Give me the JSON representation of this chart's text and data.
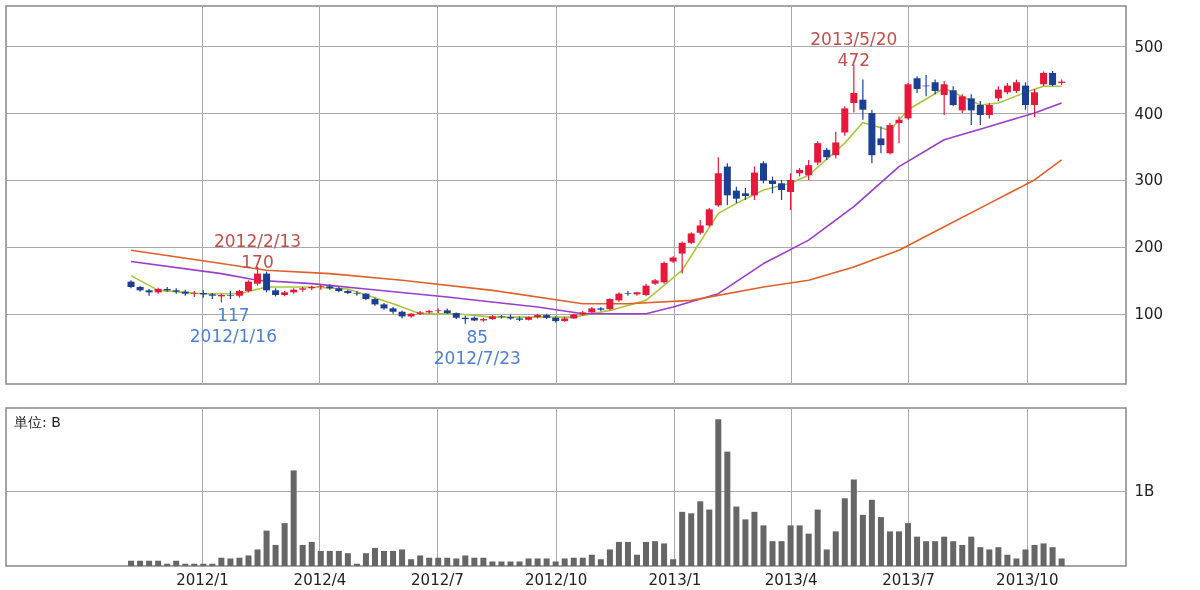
{
  "chart_data": [
    {
      "type": "candlestick",
      "xlim": [
        "2011-08-06",
        "2013-12-13"
      ],
      "ylim": [
        -5,
        560
      ],
      "yticks": [
        100,
        200,
        300,
        400,
        500
      ],
      "xticks": [
        {
          "value": "2012-01-01",
          "label": null
        },
        {
          "value": "2012-04-01",
          "label": null
        },
        {
          "value": "2012-07-01",
          "label": null
        },
        {
          "value": "2012-10-01",
          "label": null
        },
        {
          "value": "2013-01-01",
          "label": null
        },
        {
          "value": "2013-04-01",
          "label": null
        },
        {
          "value": "2013-07-01",
          "label": null
        },
        {
          "value": "2013-10-01",
          "label": null
        }
      ],
      "grid": true,
      "tick_labels": "y",
      "x": [
        "2011-11-07",
        "2011-11-14",
        "2011-11-21",
        "2011-11-28",
        "2011-12-05",
        "2011-12-12",
        "2011-12-19",
        "2011-12-26",
        "2012-01-02",
        "2012-01-09",
        "2012-01-16",
        "2012-01-23",
        "2012-01-30",
        "2012-02-06",
        "2012-02-13",
        "2012-02-20",
        "2012-02-27",
        "2012-03-05",
        "2012-03-12",
        "2012-03-19",
        "2012-03-26",
        "2012-04-02",
        "2012-04-09",
        "2012-04-16",
        "2012-04-23",
        "2012-04-30",
        "2012-05-07",
        "2012-05-14",
        "2012-05-21",
        "2012-05-28",
        "2012-06-04",
        "2012-06-11",
        "2012-06-18",
        "2012-06-25",
        "2012-07-02",
        "2012-07-09",
        "2012-07-16",
        "2012-07-23",
        "2012-07-30",
        "2012-08-06",
        "2012-08-13",
        "2012-08-20",
        "2012-08-27",
        "2012-09-03",
        "2012-09-10",
        "2012-09-17",
        "2012-09-24",
        "2012-10-01",
        "2012-10-08",
        "2012-10-15",
        "2012-10-22",
        "2012-10-29",
        "2012-11-05",
        "2012-11-12",
        "2012-11-19",
        "2012-11-26",
        "2012-12-03",
        "2012-12-10",
        "2012-12-17",
        "2012-12-24",
        "2012-12-31",
        "2013-01-07",
        "2013-01-14",
        "2013-01-21",
        "2013-01-28",
        "2013-02-04",
        "2013-02-11",
        "2013-02-18",
        "2013-02-25",
        "2013-03-04",
        "2013-03-11",
        "2013-03-18",
        "2013-03-25",
        "2013-04-01",
        "2013-04-08",
        "2013-04-15",
        "2013-04-22",
        "2013-04-29",
        "2013-05-06",
        "2013-05-13",
        "2013-05-20",
        "2013-05-27",
        "2013-06-03",
        "2013-06-10",
        "2013-06-17",
        "2013-06-24",
        "2013-07-01",
        "2013-07-08",
        "2013-07-15",
        "2013-07-22",
        "2013-07-29",
        "2013-08-05",
        "2013-08-12",
        "2013-08-19",
        "2013-08-26",
        "2013-09-02",
        "2013-09-09",
        "2013-09-16",
        "2013-09-23",
        "2013-09-30",
        "2013-10-07",
        "2013-10-14",
        "2013-10-21",
        "2013-10-28"
      ],
      "ohlc": [
        [
          148,
          150,
          138,
          140
        ],
        [
          140,
          142,
          133,
          135
        ],
        [
          135,
          137,
          127,
          132
        ],
        [
          132,
          139,
          130,
          137
        ],
        [
          137,
          140,
          133,
          135
        ],
        [
          135,
          138,
          130,
          133
        ],
        [
          133,
          136,
          127,
          130
        ],
        [
          130,
          134,
          125,
          131
        ],
        [
          131,
          135,
          124,
          129
        ],
        [
          129,
          131,
          122,
          127
        ],
        [
          126,
          130,
          117,
          128
        ],
        [
          128,
          134,
          122,
          127
        ],
        [
          127,
          136,
          124,
          134
        ],
        [
          134,
          150,
          132,
          148
        ],
        [
          145,
          170,
          142,
          160
        ],
        [
          160,
          163,
          132,
          135
        ],
        [
          135,
          138,
          126,
          128
        ],
        [
          128,
          134,
          126,
          132
        ],
        [
          132,
          138,
          130,
          136
        ],
        [
          136,
          140,
          133,
          138
        ],
        [
          138,
          142,
          135,
          140
        ],
        [
          140,
          143,
          136,
          141
        ],
        [
          141,
          144,
          136,
          138
        ],
        [
          138,
          140,
          132,
          134
        ],
        [
          134,
          136,
          129,
          131
        ],
        [
          131,
          134,
          127,
          130
        ],
        [
          130,
          131,
          120,
          122
        ],
        [
          122,
          124,
          112,
          114
        ],
        [
          114,
          116,
          106,
          108
        ],
        [
          108,
          110,
          100,
          103
        ],
        [
          103,
          105,
          93,
          96
        ],
        [
          96,
          101,
          94,
          100
        ],
        [
          100,
          104,
          98,
          102
        ],
        [
          102,
          106,
          100,
          104
        ],
        [
          104,
          108,
          101,
          105
        ],
        [
          105,
          108,
          100,
          101
        ],
        [
          101,
          102,
          92,
          94
        ],
        [
          94,
          97,
          85,
          92
        ],
        [
          94,
          96,
          89,
          90
        ],
        [
          90,
          94,
          88,
          92
        ],
        [
          92,
          98,
          91,
          96
        ],
        [
          96,
          98,
          93,
          95
        ],
        [
          95,
          99,
          91,
          93
        ],
        [
          93,
          96,
          89,
          91
        ],
        [
          91,
          96,
          90,
          95
        ],
        [
          95,
          100,
          93,
          98
        ],
        [
          98,
          100,
          92,
          94
        ],
        [
          94,
          96,
          87,
          89
        ],
        [
          89,
          95,
          88,
          93
        ],
        [
          93,
          100,
          92,
          99
        ],
        [
          99,
          104,
          97,
          102
        ],
        [
          102,
          110,
          101,
          108
        ],
        [
          108,
          110,
          104,
          106
        ],
        [
          107,
          123,
          105,
          122
        ],
        [
          120,
          132,
          118,
          130
        ],
        [
          131,
          134,
          127,
          130
        ],
        [
          129,
          133,
          127,
          132
        ],
        [
          128,
          145,
          126,
          142
        ],
        [
          145,
          152,
          143,
          150
        ],
        [
          147,
          178,
          145,
          176
        ],
        [
          178,
          186,
          176,
          184
        ],
        [
          190,
          208,
          160,
          206
        ],
        [
          206,
          222,
          204,
          220
        ],
        [
          221,
          240,
          218,
          232
        ],
        [
          232,
          258,
          230,
          256
        ],
        [
          262,
          334,
          260,
          310
        ],
        [
          320,
          325,
          262,
          277
        ],
        [
          284,
          290,
          265,
          272
        ],
        [
          280,
          288,
          270,
          276
        ],
        [
          277,
          320,
          270,
          311
        ],
        [
          325,
          328,
          295,
          299
        ],
        [
          299,
          305,
          280,
          294
        ],
        [
          295,
          300,
          270,
          285
        ],
        [
          282,
          310,
          255,
          300
        ],
        [
          310,
          318,
          305,
          315
        ],
        [
          307,
          330,
          300,
          322
        ],
        [
          326,
          358,
          322,
          355
        ],
        [
          345,
          348,
          330,
          334
        ],
        [
          337,
          372,
          332,
          356
        ],
        [
          371,
          410,
          366,
          407
        ],
        [
          415,
          472,
          401,
          430
        ],
        [
          420,
          450,
          390,
          405
        ],
        [
          400,
          405,
          325,
          337
        ],
        [
          362,
          380,
          340,
          352
        ],
        [
          340,
          385,
          338,
          382
        ],
        [
          385,
          395,
          355,
          390
        ],
        [
          392,
          445,
          390,
          443
        ],
        [
          452,
          455,
          430,
          436
        ],
        [
          441,
          457,
          425,
          440
        ],
        [
          446,
          450,
          428,
          433
        ],
        [
          427,
          448,
          397,
          443
        ],
        [
          434,
          440,
          410,
          412
        ],
        [
          404,
          428,
          400,
          425
        ],
        [
          422,
          428,
          382,
          404
        ],
        [
          412,
          418,
          382,
          397
        ],
        [
          397,
          415,
          392,
          412
        ],
        [
          422,
          440,
          418,
          435
        ],
        [
          431,
          445,
          428,
          441
        ],
        [
          433,
          450,
          430,
          446
        ],
        [
          441,
          446,
          405,
          412
        ],
        [
          412,
          436,
          394,
          431
        ],
        [
          443,
          462,
          440,
          460
        ],
        [
          460,
          463,
          440,
          442
        ],
        [
          445,
          450,
          442,
          447
        ]
      ],
      "series": [
        {
          "type": "line",
          "color": "#a8c83c",
          "x": [
            "2011-11-07",
            "2011-11-28",
            "2012-01-02",
            "2012-01-30",
            "2012-02-20",
            "2012-03-26",
            "2012-04-23",
            "2012-05-28",
            "2012-06-18",
            "2012-07-16",
            "2012-08-13",
            "2012-09-17",
            "2012-10-15",
            "2012-11-12",
            "2012-12-10",
            "2013-01-07",
            "2013-02-04",
            "2013-02-18",
            "2013-03-11",
            "2013-04-01",
            "2013-04-15",
            "2013-05-13",
            "2013-05-27",
            "2013-06-17",
            "2013-07-01",
            "2013-07-29",
            "2013-08-26",
            "2013-09-09",
            "2013-09-30",
            "2013-10-14",
            "2013-10-28"
          ],
          "values": [
            157,
            135,
            130,
            130,
            140,
            140,
            137,
            115,
            100,
            100,
            95,
            95,
            95,
            105,
            120,
            165,
            250,
            265,
            285,
            295,
            307,
            355,
            386,
            374,
            405,
            437,
            412,
            415,
            431,
            440,
            440
          ]
        },
        {
          "type": "line",
          "color": "#9a3ccc",
          "x": [
            "2011-11-07",
            "2012-01-16",
            "2012-02-13",
            "2012-03-26",
            "2012-05-07",
            "2012-07-09",
            "2012-09-17",
            "2012-10-22",
            "2012-12-10",
            "2012-12-31",
            "2013-02-04",
            "2013-03-11",
            "2013-04-15",
            "2013-05-20",
            "2013-06-24",
            "2013-07-29",
            "2013-09-02",
            "2013-10-07",
            "2013-10-28"
          ],
          "values": [
            178,
            160,
            150,
            145,
            137,
            125,
            110,
            100,
            100,
            110,
            130,
            175,
            210,
            260,
            320,
            360,
            380,
            400,
            415
          ]
        },
        {
          "type": "line",
          "color": "#e0602a",
          "x": [
            "2011-11-07",
            "2012-01-16",
            "2012-02-20",
            "2012-04-09",
            "2012-06-04",
            "2012-08-13",
            "2012-10-22",
            "2012-11-26",
            "2013-01-14",
            "2013-03-11",
            "2013-04-15",
            "2013-05-20",
            "2013-06-24",
            "2013-07-29",
            "2013-09-02",
            "2013-10-07",
            "2013-10-28"
          ],
          "values": [
            195,
            175,
            165,
            160,
            150,
            135,
            115,
            115,
            120,
            140,
            150,
            170,
            195,
            230,
            265,
            300,
            330
          ]
        }
      ],
      "annotations": [
        {
          "text": "2012/2/13\n170",
          "x": "2012-02-13",
          "y": 170
        },
        {
          "text": "117\n2012/1/16",
          "x": "2012-01-16",
          "y": 117
        },
        {
          "text": "85\n2012/7/23",
          "x": "2012-07-23",
          "y": 85
        },
        {
          "text": "2013/5/20\n472",
          "x": "2013-05-20",
          "y": 472
        }
      ]
    },
    {
      "type": "bar",
      "xlim": [
        "2011-08-06",
        "2013-12-13"
      ],
      "ylim": [
        0,
        2.1
      ],
      "yticks": [
        {
          "value": 1,
          "label": "1B"
        }
      ],
      "xticks": [
        {
          "value": "2012-01-01",
          "label": "2012/1"
        },
        {
          "value": "2012-04-01",
          "label": "2012/4"
        },
        {
          "value": "2012-07-01",
          "label": "2012/7"
        },
        {
          "value": "2012-10-01",
          "label": "2012/10"
        },
        {
          "value": "2013-01-01",
          "label": "2013/1"
        },
        {
          "value": "2013-04-01",
          "label": "2013/4"
        },
        {
          "value": "2013-07-01",
          "label": "2013/7"
        },
        {
          "value": "2013-10-01",
          "label": "2013/10"
        }
      ],
      "grid": true,
      "color": "#666666",
      "annotations": [
        "単位: B"
      ],
      "x": [
        "2011-11-07",
        "2011-11-14",
        "2011-11-21",
        "2011-11-28",
        "2011-12-05",
        "2011-12-12",
        "2011-12-19",
        "2011-12-26",
        "2012-01-02",
        "2012-01-09",
        "2012-01-16",
        "2012-01-23",
        "2012-01-30",
        "2012-02-06",
        "2012-02-13",
        "2012-02-20",
        "2012-02-27",
        "2012-03-05",
        "2012-03-12",
        "2012-03-19",
        "2012-03-26",
        "2012-04-02",
        "2012-04-09",
        "2012-04-16",
        "2012-04-23",
        "2012-04-30",
        "2012-05-07",
        "2012-05-14",
        "2012-05-21",
        "2012-05-28",
        "2012-06-04",
        "2012-06-11",
        "2012-06-18",
        "2012-06-25",
        "2012-07-02",
        "2012-07-09",
        "2012-07-16",
        "2012-07-23",
        "2012-07-30",
        "2012-08-06",
        "2012-08-13",
        "2012-08-20",
        "2012-08-27",
        "2012-09-03",
        "2012-09-10",
        "2012-09-17",
        "2012-09-24",
        "2012-10-01",
        "2012-10-08",
        "2012-10-15",
        "2012-10-22",
        "2012-10-29",
        "2012-11-05",
        "2012-11-12",
        "2012-11-19",
        "2012-11-26",
        "2012-12-03",
        "2012-12-10",
        "2012-12-17",
        "2012-12-24",
        "2012-12-31",
        "2013-01-07",
        "2013-01-14",
        "2013-01-21",
        "2013-01-28",
        "2013-02-04",
        "2013-02-11",
        "2013-02-18",
        "2013-02-25",
        "2013-03-04",
        "2013-03-11",
        "2013-03-18",
        "2013-03-25",
        "2013-04-01",
        "2013-04-08",
        "2013-04-15",
        "2013-04-22",
        "2013-04-29",
        "2013-05-06",
        "2013-05-13",
        "2013-05-20",
        "2013-05-27",
        "2013-06-03",
        "2013-06-10",
        "2013-06-17",
        "2013-06-24",
        "2013-07-01",
        "2013-07-08",
        "2013-07-15",
        "2013-07-22",
        "2013-07-29",
        "2013-08-05",
        "2013-08-12",
        "2013-08-19",
        "2013-08-26",
        "2013-09-02",
        "2013-09-09",
        "2013-09-16",
        "2013-09-23",
        "2013-09-30",
        "2013-10-07",
        "2013-10-14",
        "2013-10-21",
        "2013-10-28"
      ],
      "values": [
        0.07,
        0.07,
        0.07,
        0.07,
        0.03,
        0.07,
        0.03,
        0.03,
        0.03,
        0.03,
        0.11,
        0.1,
        0.11,
        0.14,
        0.22,
        0.47,
        0.28,
        0.57,
        1.27,
        0.28,
        0.32,
        0.2,
        0.2,
        0.2,
        0.17,
        0.03,
        0.17,
        0.24,
        0.2,
        0.2,
        0.22,
        0.09,
        0.14,
        0.11,
        0.11,
        0.11,
        0.1,
        0.14,
        0.11,
        0.11,
        0.06,
        0.06,
        0.06,
        0.06,
        0.1,
        0.1,
        0.1,
        0.06,
        0.1,
        0.11,
        0.11,
        0.15,
        0.09,
        0.22,
        0.32,
        0.32,
        0.15,
        0.32,
        0.33,
        0.3,
        0.09,
        0.72,
        0.7,
        0.86,
        0.75,
        1.95,
        1.52,
        0.79,
        0.62,
        0.72,
        0.54,
        0.33,
        0.33,
        0.54,
        0.54,
        0.43,
        0.75,
        0.22,
        0.46,
        0.9,
        1.15,
        0.68,
        0.88,
        0.65,
        0.46,
        0.46,
        0.57,
        0.39,
        0.33,
        0.33,
        0.39,
        0.33,
        0.28,
        0.39,
        0.25,
        0.22,
        0.25,
        0.15,
        0.1,
        0.22,
        0.28,
        0.3,
        0.25,
        0.1
      ]
    }
  ]
}
